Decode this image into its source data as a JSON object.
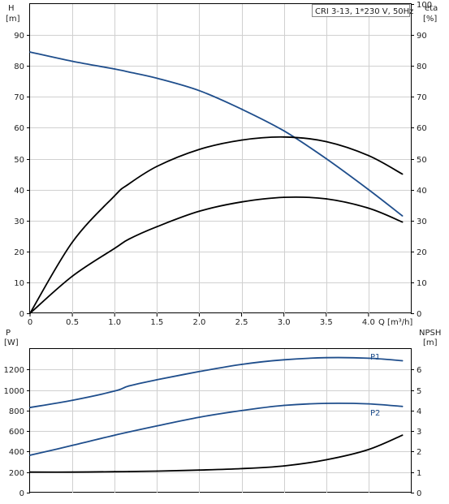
{
  "chart_data": [
    {
      "type": "line",
      "title": "CRI 3-13, 1*230 V, 50Hz",
      "xlabel": "Q [m³/h]",
      "x_ticks": [
        "0",
        "0.5",
        "1.0",
        "1.5",
        "2.0",
        "2.5",
        "3.0",
        "3.5",
        "4.0"
      ],
      "xlim": [
        0,
        4.5
      ],
      "left_axis": {
        "label_line1": "H",
        "label_line2": "[m]",
        "ticks": [
          "0",
          "10",
          "20",
          "30",
          "40",
          "50",
          "60",
          "70",
          "80",
          "90"
        ],
        "ylim": [
          0,
          100
        ]
      },
      "right_axis": {
        "label_line1": "eta",
        "label_line2": "[%]",
        "ticks": [
          "0",
          "10",
          "20",
          "30",
          "40",
          "50",
          "60",
          "70",
          "80",
          "90",
          "100"
        ],
        "ylim": [
          0,
          100
        ]
      },
      "grid": true,
      "series": [
        {
          "axis": "left",
          "color": "#1f4e8c",
          "x": [
            0,
            0.5,
            1.0,
            1.17,
            1.5,
            2.0,
            2.5,
            3.0,
            3.5,
            4.0,
            4.4
          ],
          "y": [
            84.5,
            81.5,
            79,
            78,
            76,
            72,
            66,
            59,
            50,
            40,
            31.5
          ]
        },
        {
          "axis": "right",
          "color": "#000000",
          "x": [
            0,
            0.5,
            1.0,
            1.15,
            1.5,
            2.0,
            2.5,
            3.0,
            3.5,
            4.0,
            4.4
          ],
          "y": [
            0,
            23,
            38,
            41.5,
            47.5,
            53,
            56,
            57,
            55.5,
            51,
            45
          ]
        },
        {
          "axis": "right",
          "color": "#000000",
          "x": [
            0,
            0.5,
            1.0,
            1.17,
            1.5,
            2.0,
            2.5,
            3.0,
            3.5,
            4.0,
            4.4
          ],
          "y": [
            0,
            12,
            21,
            24,
            28,
            33,
            36,
            37.5,
            37,
            34,
            29.5
          ]
        }
      ]
    },
    {
      "type": "line",
      "xlim": [
        0,
        4.5
      ],
      "left_axis": {
        "label_line1": "P",
        "label_line2": "[W]",
        "ticks": [
          "0",
          "200",
          "400",
          "600",
          "800",
          "1000",
          "1200"
        ],
        "ylim": [
          0,
          1400
        ]
      },
      "right_axis": {
        "label_line1": "NPSH",
        "label_line2": "[m]",
        "ticks": [
          "0",
          "1",
          "2",
          "3",
          "4",
          "5",
          "6"
        ],
        "ylim": [
          0,
          7
        ]
      },
      "grid": true,
      "series": [
        {
          "name": "P1",
          "axis": "left",
          "color": "#1f4e8c",
          "x": [
            0,
            0.5,
            1.0,
            1.17,
            1.5,
            2.0,
            2.5,
            3.0,
            3.5,
            4.0,
            4.4
          ],
          "y": [
            830,
            900,
            990,
            1040,
            1100,
            1180,
            1250,
            1295,
            1315,
            1310,
            1285
          ]
        },
        {
          "name": "P2",
          "axis": "left",
          "color": "#1f4e8c",
          "x": [
            0,
            0.5,
            1.0,
            1.5,
            2.0,
            2.5,
            3.0,
            3.5,
            4.0,
            4.4
          ],
          "y": [
            365,
            460,
            560,
            650,
            735,
            800,
            850,
            870,
            865,
            840
          ]
        },
        {
          "axis": "right",
          "color": "#000000",
          "x": [
            0,
            0.5,
            1.0,
            1.17,
            1.5,
            2.0,
            2.5,
            3.0,
            3.5,
            4.0,
            4.4
          ],
          "y": [
            1.0,
            1.0,
            1.02,
            1.03,
            1.05,
            1.1,
            1.17,
            1.3,
            1.6,
            2.1,
            2.8
          ]
        }
      ]
    }
  ]
}
